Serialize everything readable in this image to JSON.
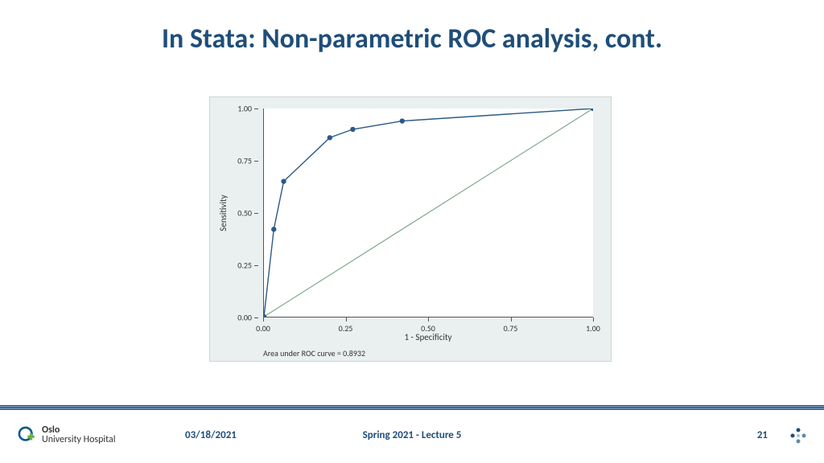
{
  "title": "In Stata: Non-parametric ROC analysis, cont.",
  "chart": {
    "type": "line",
    "background_color": "#eaf0f0",
    "plot_background": "#ffffff",
    "axis_color": "#555555",
    "tick_fontsize": 10,
    "label_fontsize": 11,
    "xlim": [
      0.0,
      1.0
    ],
    "ylim": [
      0.0,
      1.0
    ],
    "xticks": [
      0.0,
      0.25,
      0.5,
      0.75,
      1.0
    ],
    "yticks": [
      0.0,
      0.25,
      0.5,
      0.75,
      1.0
    ],
    "xtick_labels": [
      "0.00",
      "0.25",
      "0.50",
      "0.75",
      "1.00"
    ],
    "ytick_labels": [
      "0.00",
      "0.25",
      "0.50",
      "0.75",
      "1.00"
    ],
    "xlabel": "1 - Specificity",
    "ylabel": "Sensitivity",
    "roc_curve": {
      "x": [
        0.0,
        0.03,
        0.06,
        0.2,
        0.27,
        0.42,
        1.0
      ],
      "y": [
        0.0,
        0.42,
        0.65,
        0.86,
        0.9,
        0.94,
        1.0
      ],
      "line_color": "#2d5986",
      "line_width": 1.4,
      "marker_color": "#2d5986",
      "marker_radius": 3.2
    },
    "reference_line": {
      "x": [
        0.0,
        1.0
      ],
      "y": [
        0.0,
        1.0
      ],
      "line_color": "#6a9a7a",
      "line_width": 1
    },
    "auc_label": "Area under ROC curve = 0.8932"
  },
  "footer": {
    "org_line1": "Oslo",
    "org_line2": "University Hospital",
    "date": "03/18/2021",
    "center": "Spring 2021 - Lecture 5",
    "page": "21",
    "accent_color": "#1f4e79"
  }
}
